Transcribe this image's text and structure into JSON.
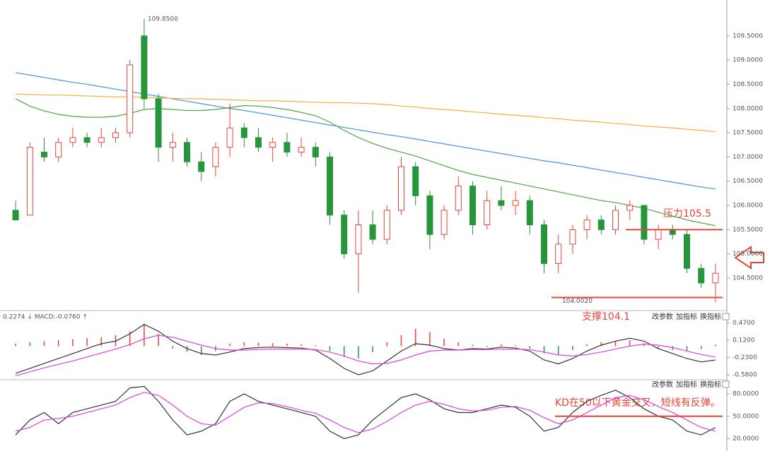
{
  "chart_data": [
    {
      "type": "candlestick",
      "open": [
        105.9,
        105.8,
        107.1,
        107.0,
        107.3,
        107.4,
        107.3,
        107.4,
        107.5,
        109.5,
        108.2,
        107.2,
        107.3,
        106.9,
        106.8,
        107.2,
        107.6,
        107.4,
        107.2,
        107.3,
        107.1,
        107.2,
        107.0,
        105.8,
        105.0,
        105.6,
        105.3,
        105.9,
        106.8,
        106.2,
        105.4,
        105.9,
        106.4,
        105.6,
        106.1,
        106.0,
        106.1,
        105.6,
        104.8,
        105.2,
        105.5,
        105.7,
        105.5,
        105.9,
        106.0,
        105.3,
        105.5,
        105.4,
        104.7,
        104.4
      ],
      "high": [
        106.1,
        107.3,
        107.4,
        107.4,
        107.6,
        107.5,
        107.6,
        107.6,
        109.0,
        109.85,
        108.3,
        107.5,
        107.4,
        107.1,
        107.3,
        108.1,
        107.7,
        107.6,
        107.4,
        107.5,
        107.4,
        107.3,
        107.1,
        105.9,
        105.9,
        105.9,
        106.0,
        107.0,
        106.9,
        106.3,
        106.0,
        106.6,
        106.5,
        106.3,
        106.4,
        106.3,
        106.2,
        105.7,
        105.4,
        105.6,
        105.8,
        105.8,
        106.0,
        106.1,
        106.0,
        105.6,
        105.6,
        105.5,
        104.8,
        104.8
      ],
      "low": [
        105.7,
        105.8,
        106.9,
        106.9,
        107.2,
        107.2,
        107.2,
        107.3,
        107.4,
        108.0,
        106.9,
        106.9,
        106.8,
        106.5,
        106.6,
        107.0,
        107.2,
        107.1,
        106.9,
        107.0,
        107.0,
        106.8,
        105.6,
        104.9,
        104.2,
        105.2,
        105.2,
        105.8,
        106.0,
        105.1,
        105.3,
        105.8,
        105.4,
        105.5,
        105.9,
        105.8,
        105.4,
        104.6,
        104.6,
        105.0,
        105.3,
        105.4,
        105.4,
        105.7,
        105.2,
        105.1,
        105.3,
        104.6,
        104.3,
        104.002
      ],
      "close": [
        105.7,
        107.2,
        107.0,
        107.3,
        107.4,
        107.3,
        107.4,
        107.5,
        108.9,
        108.2,
        107.2,
        107.3,
        106.9,
        106.7,
        107.2,
        107.6,
        107.4,
        107.2,
        107.3,
        107.1,
        107.2,
        107.0,
        105.8,
        105.0,
        105.6,
        105.3,
        105.9,
        106.8,
        106.2,
        105.4,
        105.9,
        106.4,
        105.6,
        106.1,
        106.0,
        106.1,
        105.6,
        104.8,
        105.2,
        105.5,
        105.7,
        105.5,
        105.9,
        106.0,
        105.3,
        105.5,
        105.4,
        104.7,
        104.4,
        104.6
      ],
      "up_color": "#e8443a",
      "down_color": "#27963a",
      "series": [
        {
          "color": "#4a90d9",
          "values": [
            108.74,
            108.69,
            108.64,
            108.59,
            108.54,
            108.5,
            108.45,
            108.4,
            108.35,
            108.3,
            108.25,
            108.2,
            108.15,
            108.1,
            108.05,
            108.0,
            107.96,
            107.91,
            107.86,
            107.81,
            107.76,
            107.71,
            107.66,
            107.61,
            107.56,
            107.51,
            107.46,
            107.42,
            107.37,
            107.32,
            107.27,
            107.22,
            107.17,
            107.12,
            107.07,
            107.02,
            106.97,
            106.92,
            106.88,
            106.83,
            106.78,
            106.73,
            106.68,
            106.63,
            106.58,
            106.53,
            106.48,
            106.43,
            106.38,
            106.34
          ]
        },
        {
          "color": "#f5b041",
          "values": [
            108.3,
            108.29,
            108.28,
            108.28,
            108.27,
            108.26,
            108.25,
            108.24,
            108.24,
            108.23,
            108.22,
            108.21,
            108.2,
            108.2,
            108.19,
            108.18,
            108.17,
            108.16,
            108.16,
            108.15,
            108.14,
            108.13,
            108.12,
            108.12,
            108.11,
            108.1,
            108.08,
            108.05,
            108.03,
            108.0,
            107.98,
            107.96,
            107.93,
            107.91,
            107.88,
            107.86,
            107.84,
            107.81,
            107.79,
            107.76,
            107.74,
            107.72,
            107.69,
            107.67,
            107.64,
            107.62,
            107.6,
            107.57,
            107.55,
            107.52
          ]
        },
        {
          "color": "#52a447",
          "values": [
            108.2,
            108.05,
            107.95,
            107.88,
            107.84,
            107.82,
            107.82,
            107.84,
            107.9,
            107.98,
            108.0,
            107.98,
            107.96,
            107.96,
            107.98,
            108.02,
            108.06,
            108.05,
            108.02,
            107.98,
            107.92,
            107.85,
            107.72,
            107.55,
            107.4,
            107.28,
            107.18,
            107.1,
            107.02,
            106.92,
            106.82,
            106.72,
            106.64,
            106.58,
            106.52,
            106.46,
            106.4,
            106.34,
            106.28,
            106.22,
            106.16,
            106.1,
            106.06,
            106.0,
            105.94,
            105.86,
            105.78,
            105.7,
            105.64,
            105.58
          ]
        }
      ],
      "ylim": [
        103.83,
        110.24
      ],
      "yticks": [
        {
          "value": 104.5,
          "label": "104.5000"
        },
        {
          "value": 105,
          "label": "105.0000"
        },
        {
          "value": 105.5,
          "label": "105.5000"
        },
        {
          "value": 106,
          "label": "106.0000"
        },
        {
          "value": 106.5,
          "label": "106.5000"
        },
        {
          "value": 107,
          "label": "107.0000"
        },
        {
          "value": 107.5,
          "label": "107.5000"
        },
        {
          "value": 108,
          "label": "108.0000"
        },
        {
          "value": 108.5,
          "label": "108.5000"
        },
        {
          "value": 109,
          "label": "109.0000"
        },
        {
          "value": 109.5,
          "label": "109.5000"
        }
      ],
      "high_label": "109.8500",
      "low_label": "104.0020",
      "resistance": 105.5,
      "resistance_text": "压力105.5",
      "support": 104.1,
      "support_text": "支撑104.1",
      "level_color": "#e8443a"
    },
    {
      "type": "macd",
      "label": "0.2274 ↓ MACD:-0.0760 ↑",
      "histogram": [
        0.05,
        0.08,
        0.1,
        0.12,
        0.14,
        0.16,
        0.18,
        0.22,
        0.3,
        0.43,
        0.25,
        -0.05,
        -0.12,
        -0.18,
        -0.1,
        0.05,
        0.08,
        0.07,
        0.06,
        0.05,
        0.04,
        0.02,
        -0.1,
        -0.22,
        -0.25,
        -0.12,
        0.08,
        0.22,
        0.35,
        0.28,
        0.15,
        0.08,
        0.03,
        -0.02,
        0.04,
        0.02,
        -0.05,
        -0.15,
        -0.18,
        -0.08,
        0.04,
        0.08,
        0.1,
        0.12,
        0.06,
        -0.05,
        -0.08,
        -0.1,
        -0.06,
        0.03
      ],
      "up_color": "#e8443a",
      "down_color": "#27963a",
      "series": [
        {
          "color": "#333333",
          "values": [
            -0.55,
            -0.45,
            -0.35,
            -0.25,
            -0.15,
            -0.05,
            0.05,
            0.1,
            0.25,
            0.44,
            0.3,
            0.1,
            -0.05,
            -0.15,
            -0.18,
            -0.12,
            -0.05,
            -0.03,
            -0.02,
            -0.03,
            -0.04,
            -0.08,
            -0.25,
            -0.45,
            -0.58,
            -0.5,
            -0.3,
            -0.1,
            0.05,
            0.02,
            -0.05,
            -0.08,
            -0.05,
            -0.06,
            -0.02,
            -0.04,
            -0.1,
            -0.28,
            -0.36,
            -0.25,
            -0.1,
            0.02,
            0.1,
            0.16,
            0.1,
            -0.05,
            -0.15,
            -0.25,
            -0.32,
            -0.28
          ]
        },
        {
          "color": "#e040e0",
          "values": [
            -0.6,
            -0.52,
            -0.44,
            -0.37,
            -0.3,
            -0.22,
            -0.14,
            -0.06,
            0.03,
            0.15,
            0.22,
            0.18,
            0.1,
            0.02,
            -0.05,
            -0.08,
            -0.08,
            -0.07,
            -0.06,
            -0.06,
            -0.06,
            -0.07,
            -0.12,
            -0.2,
            -0.3,
            -0.36,
            -0.35,
            -0.28,
            -0.18,
            -0.1,
            -0.08,
            -0.08,
            -0.07,
            -0.07,
            -0.06,
            -0.06,
            -0.07,
            -0.12,
            -0.18,
            -0.2,
            -0.17,
            -0.12,
            -0.06,
            0.0,
            0.04,
            0.02,
            -0.03,
            -0.1,
            -0.17,
            -0.22
          ]
        }
      ],
      "ylim": [
        -0.68,
        0.72
      ],
      "yticks": [
        {
          "value": 0.47,
          "label": "0.4700"
        },
        {
          "value": 0.12,
          "label": "0.1200"
        },
        {
          "value": -0.23,
          "label": "-0.2300"
        },
        {
          "value": -0.58,
          "label": "-0.5800"
        }
      ]
    },
    {
      "type": "kd",
      "series": [
        {
          "color": "#333333",
          "values": [
            25,
            45,
            55,
            40,
            55,
            60,
            65,
            70,
            88,
            90,
            70,
            45,
            25,
            30,
            40,
            70,
            80,
            70,
            65,
            60,
            55,
            50,
            30,
            20,
            25,
            45,
            60,
            75,
            80,
            72,
            60,
            55,
            55,
            60,
            65,
            62,
            50,
            30,
            35,
            55,
            70,
            78,
            85,
            75,
            60,
            50,
            45,
            30,
            25,
            35
          ]
        },
        {
          "color": "#e040e0",
          "values": [
            30,
            35,
            45,
            47,
            50,
            55,
            60,
            65,
            75,
            82,
            78,
            65,
            50,
            40,
            38,
            50,
            62,
            68,
            67,
            63,
            58,
            54,
            45,
            35,
            28,
            33,
            43,
            55,
            65,
            70,
            66,
            60,
            57,
            58,
            62,
            63,
            58,
            48,
            40,
            45,
            55,
            65,
            75,
            78,
            72,
            63,
            55,
            45,
            35,
            30
          ]
        }
      ],
      "ylim": [
        10,
        99
      ],
      "yticks": [
        {
          "value": 80,
          "label": "80.0000"
        },
        {
          "value": 50,
          "label": "50.0000"
        },
        {
          "value": 20,
          "label": "20.0000"
        }
      ],
      "level": 50,
      "level_color": "#e8443a",
      "note": "KD在50以下黄金交叉，短线有反弹。"
    }
  ],
  "toolbar": {
    "buttons": [
      "改参数",
      "加指标",
      "换指标"
    ]
  }
}
